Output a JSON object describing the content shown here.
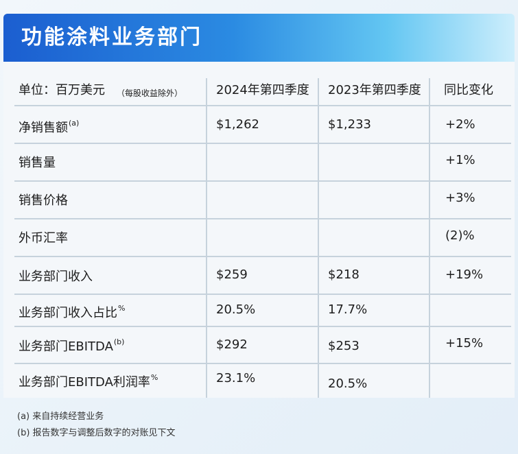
{
  "title": "功能涂料业务部门",
  "table": {
    "headers": {
      "unit_label": "单位：百万美元",
      "unit_note": "（每股收益除外）",
      "col_2024": "2024年第四季度",
      "col_2023": "2023年第四季度",
      "col_change": "同比变化"
    },
    "rows": [
      {
        "label": "净销售额",
        "sup": "(a)",
        "v2024": "$1,262",
        "v2023": "$1,233",
        "change": "+2%"
      },
      {
        "label": "销售量",
        "sup": "",
        "v2024": "",
        "v2023": "",
        "change": "+1%"
      },
      {
        "label": "销售价格",
        "sup": "",
        "v2024": "",
        "v2023": "",
        "change": "+3%"
      },
      {
        "label": "外币汇率",
        "sup": "",
        "v2024": "",
        "v2023": "",
        "change": "(2)%"
      },
      {
        "label": "业务部门收入",
        "sup": "",
        "v2024": "$259",
        "v2023": "$218",
        "change": "+19%"
      },
      {
        "label": "业务部门收入占比",
        "sup": "%",
        "v2024": "20.5%",
        "v2023": "17.7%",
        "change": ""
      },
      {
        "label": "业务部门EBITDA",
        "sup": "(b)",
        "v2024": "$292",
        "v2023": "$253",
        "change": "+15%"
      },
      {
        "label": "业务部门EBITDA利润率",
        "sup": "%",
        "v2024": "23.1%",
        "v2023": "20.5%",
        "change": ""
      }
    ]
  },
  "footnotes": {
    "a": "(a) 来自持续经营业务",
    "b": "(b) 报告数字与调整后数字的对账见下文"
  }
}
